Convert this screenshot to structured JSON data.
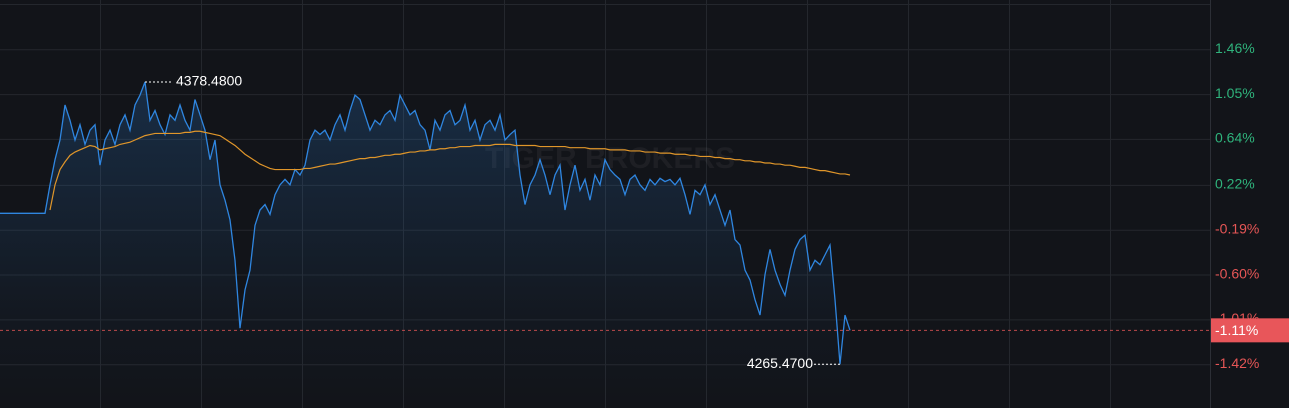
{
  "chart_data": {
    "type": "line",
    "watermark": "TIGER BROKERS",
    "ylim": [
      -1.82,
      1.91
    ],
    "yticks": [
      {
        "value": 1.46,
        "label": "1.46%"
      },
      {
        "value": 1.05,
        "label": "1.05%"
      },
      {
        "value": 0.64,
        "label": "0.64%"
      },
      {
        "value": 0.22,
        "label": "0.22%"
      },
      {
        "value": -0.19,
        "label": "-0.19%"
      },
      {
        "value": -0.6,
        "label": "-0.60%"
      },
      {
        "value": -1.01,
        "label": "-1.01%"
      },
      {
        "value": -1.42,
        "label": "-1.42%"
      }
    ],
    "up_color": "#2fb37c",
    "down_color": "#e65656",
    "grid": true,
    "annotations": {
      "high": "4378.4800",
      "low": "4265.4700",
      "last": "-1.11%"
    },
    "series": [
      {
        "name": "Price",
        "color": "#2f86e0",
        "values": [
          -0.04,
          -0.04,
          -0.04,
          -0.04,
          -0.04,
          -0.04,
          -0.04,
          -0.04,
          -0.04,
          -0.04,
          0.22,
          0.45,
          0.63,
          0.95,
          0.81,
          0.63,
          0.77,
          0.59,
          0.72,
          0.77,
          0.4,
          0.63,
          0.72,
          0.59,
          0.77,
          0.86,
          0.72,
          0.95,
          1.04,
          1.16,
          0.81,
          0.9,
          0.77,
          0.68,
          0.86,
          0.81,
          0.95,
          0.81,
          0.72,
          1.0,
          0.86,
          0.72,
          0.45,
          0.63,
          0.22,
          0.08,
          -0.1,
          -0.47,
          -1.09,
          -0.74,
          -0.56,
          -0.15,
          -0.01,
          0.04,
          -0.05,
          0.13,
          0.22,
          0.27,
          0.22,
          0.36,
          0.31,
          0.4,
          0.63,
          0.72,
          0.68,
          0.72,
          0.63,
          0.77,
          0.86,
          0.72,
          0.9,
          1.04,
          1.0,
          0.86,
          0.72,
          0.81,
          0.77,
          0.86,
          0.9,
          0.81,
          1.04,
          0.95,
          0.86,
          0.9,
          0.77,
          0.72,
          0.54,
          0.81,
          0.72,
          0.86,
          0.9,
          0.77,
          0.81,
          0.95,
          0.72,
          0.81,
          0.63,
          0.77,
          0.81,
          0.72,
          0.86,
          0.63,
          0.68,
          0.72,
          0.31,
          0.04,
          0.22,
          0.31,
          0.45,
          0.31,
          0.13,
          0.31,
          0.4,
          -0.01,
          0.22,
          0.4,
          0.17,
          0.27,
          0.08,
          0.31,
          0.22,
          0.45,
          0.36,
          0.31,
          0.27,
          0.13,
          0.27,
          0.31,
          0.22,
          0.17,
          0.27,
          0.22,
          0.28,
          0.25,
          0.27,
          0.22,
          0.28,
          0.13,
          -0.05,
          0.17,
          0.13,
          0.22,
          0.04,
          0.13,
          -0.01,
          -0.15,
          -0.01,
          -0.28,
          -0.33,
          -0.56,
          -0.65,
          -0.83,
          -0.97,
          -0.6,
          -0.37,
          -0.56,
          -0.69,
          -0.79,
          -0.56,
          -0.37,
          -0.28,
          -0.24,
          -0.56,
          -0.47,
          -0.51,
          -0.42,
          -0.33,
          -0.83,
          -1.42,
          -0.97,
          -1.11
        ]
      },
      {
        "name": "Average",
        "color": "#e0962a",
        "values": [
          null,
          null,
          null,
          null,
          null,
          null,
          null,
          null,
          null,
          null,
          -0.01,
          0.22,
          0.36,
          0.43,
          0.49,
          0.52,
          0.54,
          0.56,
          0.58,
          0.57,
          0.54,
          0.55,
          0.56,
          0.57,
          0.59,
          0.6,
          0.61,
          0.63,
          0.65,
          0.67,
          0.68,
          0.69,
          0.69,
          0.69,
          0.69,
          0.69,
          0.69,
          0.7,
          0.7,
          0.71,
          0.71,
          0.7,
          0.69,
          0.68,
          0.67,
          0.64,
          0.61,
          0.58,
          0.54,
          0.5,
          0.47,
          0.44,
          0.41,
          0.39,
          0.37,
          0.36,
          0.36,
          0.36,
          0.36,
          0.36,
          0.36,
          0.37,
          0.37,
          0.38,
          0.39,
          0.4,
          0.41,
          0.41,
          0.42,
          0.43,
          0.44,
          0.45,
          0.46,
          0.46,
          0.47,
          0.47,
          0.48,
          0.49,
          0.49,
          0.5,
          0.5,
          0.51,
          0.52,
          0.52,
          0.53,
          0.53,
          0.54,
          0.54,
          0.55,
          0.55,
          0.56,
          0.56,
          0.57,
          0.57,
          0.57,
          0.58,
          0.58,
          0.58,
          0.58,
          0.59,
          0.59,
          0.59,
          0.59,
          0.58,
          0.58,
          0.58,
          0.58,
          0.58,
          0.57,
          0.57,
          0.57,
          0.57,
          0.57,
          0.57,
          0.56,
          0.56,
          0.56,
          0.56,
          0.55,
          0.55,
          0.55,
          0.55,
          0.54,
          0.54,
          0.54,
          0.54,
          0.53,
          0.53,
          0.53,
          0.52,
          0.52,
          0.52,
          0.51,
          0.51,
          0.51,
          0.5,
          0.5,
          0.5,
          0.49,
          0.49,
          0.48,
          0.48,
          0.48,
          0.47,
          0.47,
          0.46,
          0.46,
          0.45,
          0.45,
          0.44,
          0.44,
          0.43,
          0.43,
          0.42,
          0.42,
          0.41,
          0.41,
          0.4,
          0.4,
          0.39,
          0.38,
          0.38,
          0.37,
          0.36,
          0.35,
          0.35,
          0.34,
          0.33,
          0.32,
          0.32,
          0.31
        ]
      }
    ]
  }
}
